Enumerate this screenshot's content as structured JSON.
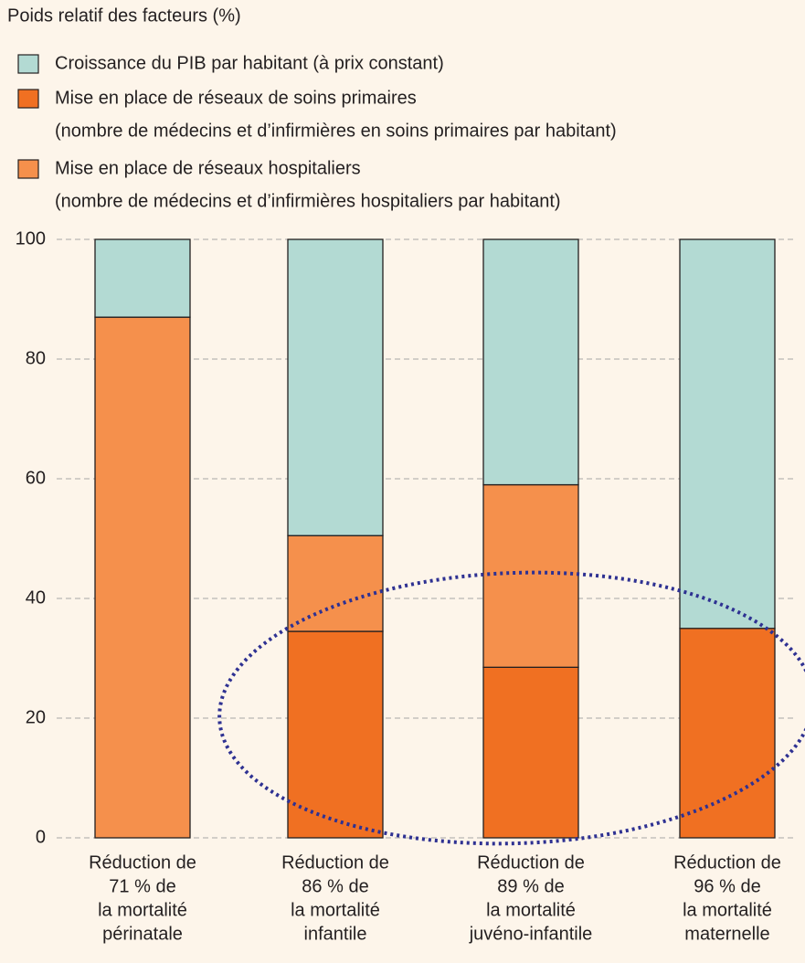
{
  "chart_data": {
    "type": "stacked_bar",
    "title": "Poids relatif des facteurs (%)",
    "categories": [
      [
        "Réduction de",
        "71 % de",
        "la mortalité",
        "périnatale"
      ],
      [
        "Réduction de",
        "86 % de",
        "la mortalité",
        "infantile"
      ],
      [
        "Réduction de",
        "89 % de",
        "la mortalité",
        "juvéno-infantile"
      ],
      [
        "Réduction de",
        "96 % de",
        "la mortalité",
        "maternelle"
      ]
    ],
    "series": [
      {
        "name": "Croissance du PIB par habitant (à prix constant)",
        "color": "#b3dad3",
        "values": [
          13,
          49.5,
          41,
          65
        ]
      },
      {
        "name": "Mise en place de réseaux de soins primaires",
        "description": "(nombre de médecins et d’infirmières en soins primaires par habitant)",
        "color": "#f07022",
        "values": [
          0,
          34.5,
          28.5,
          35
        ]
      },
      {
        "name": "Mise en place de réseaux hospitaliers",
        "description": "(nombre de médecins et d’infirmières hospitaliers par habitant)",
        "color": "#f5904c",
        "values": [
          87,
          16,
          30.5,
          0
        ]
      }
    ],
    "ylim": [
      0,
      100
    ],
    "yticks": [
      0,
      20,
      40,
      60,
      80,
      100
    ],
    "grid": true
  }
}
